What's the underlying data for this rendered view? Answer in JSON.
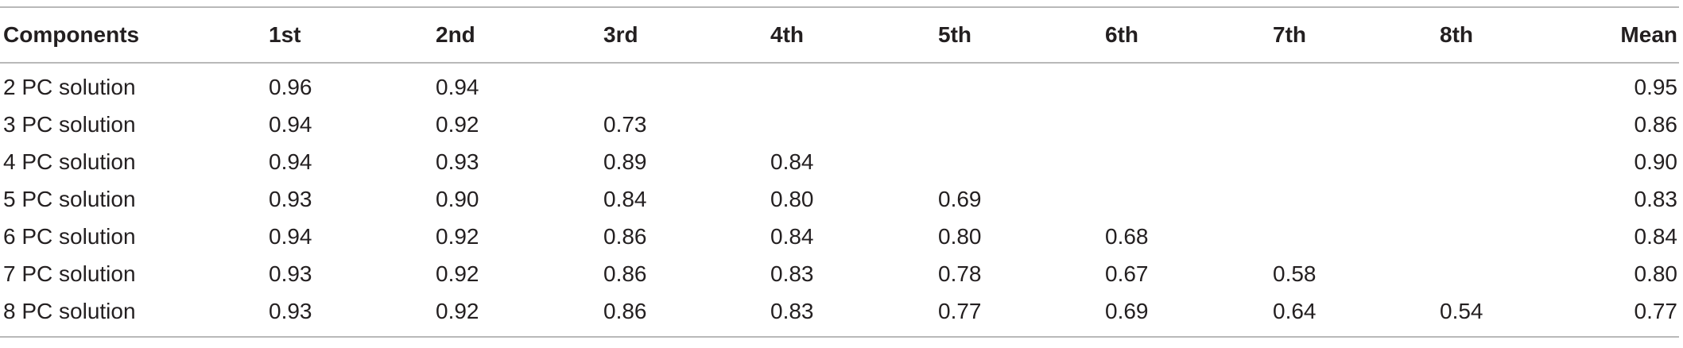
{
  "table": {
    "headers": [
      "Components",
      "1st",
      "2nd",
      "3rd",
      "4th",
      "5th",
      "6th",
      "7th",
      "8th",
      "Mean"
    ],
    "rows": [
      {
        "label": "2 PC solution",
        "values": [
          "0.96",
          "0.94",
          "",
          "",
          "",
          "",
          "",
          ""
        ],
        "mean": "0.95"
      },
      {
        "label": "3 PC solution",
        "values": [
          "0.94",
          "0.92",
          "0.73",
          "",
          "",
          "",
          "",
          ""
        ],
        "mean": "0.86"
      },
      {
        "label": "4 PC solution",
        "values": [
          "0.94",
          "0.93",
          "0.89",
          "0.84",
          "",
          "",
          "",
          ""
        ],
        "mean": "0.90"
      },
      {
        "label": "5 PC solution",
        "values": [
          "0.93",
          "0.90",
          "0.84",
          "0.80",
          "0.69",
          "",
          "",
          ""
        ],
        "mean": "0.83"
      },
      {
        "label": "6 PC solution",
        "values": [
          "0.94",
          "0.92",
          "0.86",
          "0.84",
          "0.80",
          "0.68",
          "",
          ""
        ],
        "mean": "0.84"
      },
      {
        "label": "7 PC solution",
        "values": [
          "0.93",
          "0.92",
          "0.86",
          "0.83",
          "0.78",
          "0.67",
          "0.58",
          ""
        ],
        "mean": "0.80"
      },
      {
        "label": "8 PC solution",
        "values": [
          "0.93",
          "0.92",
          "0.86",
          "0.83",
          "0.77",
          "0.69",
          "0.64",
          "0.54"
        ],
        "mean": "0.77"
      }
    ]
  }
}
